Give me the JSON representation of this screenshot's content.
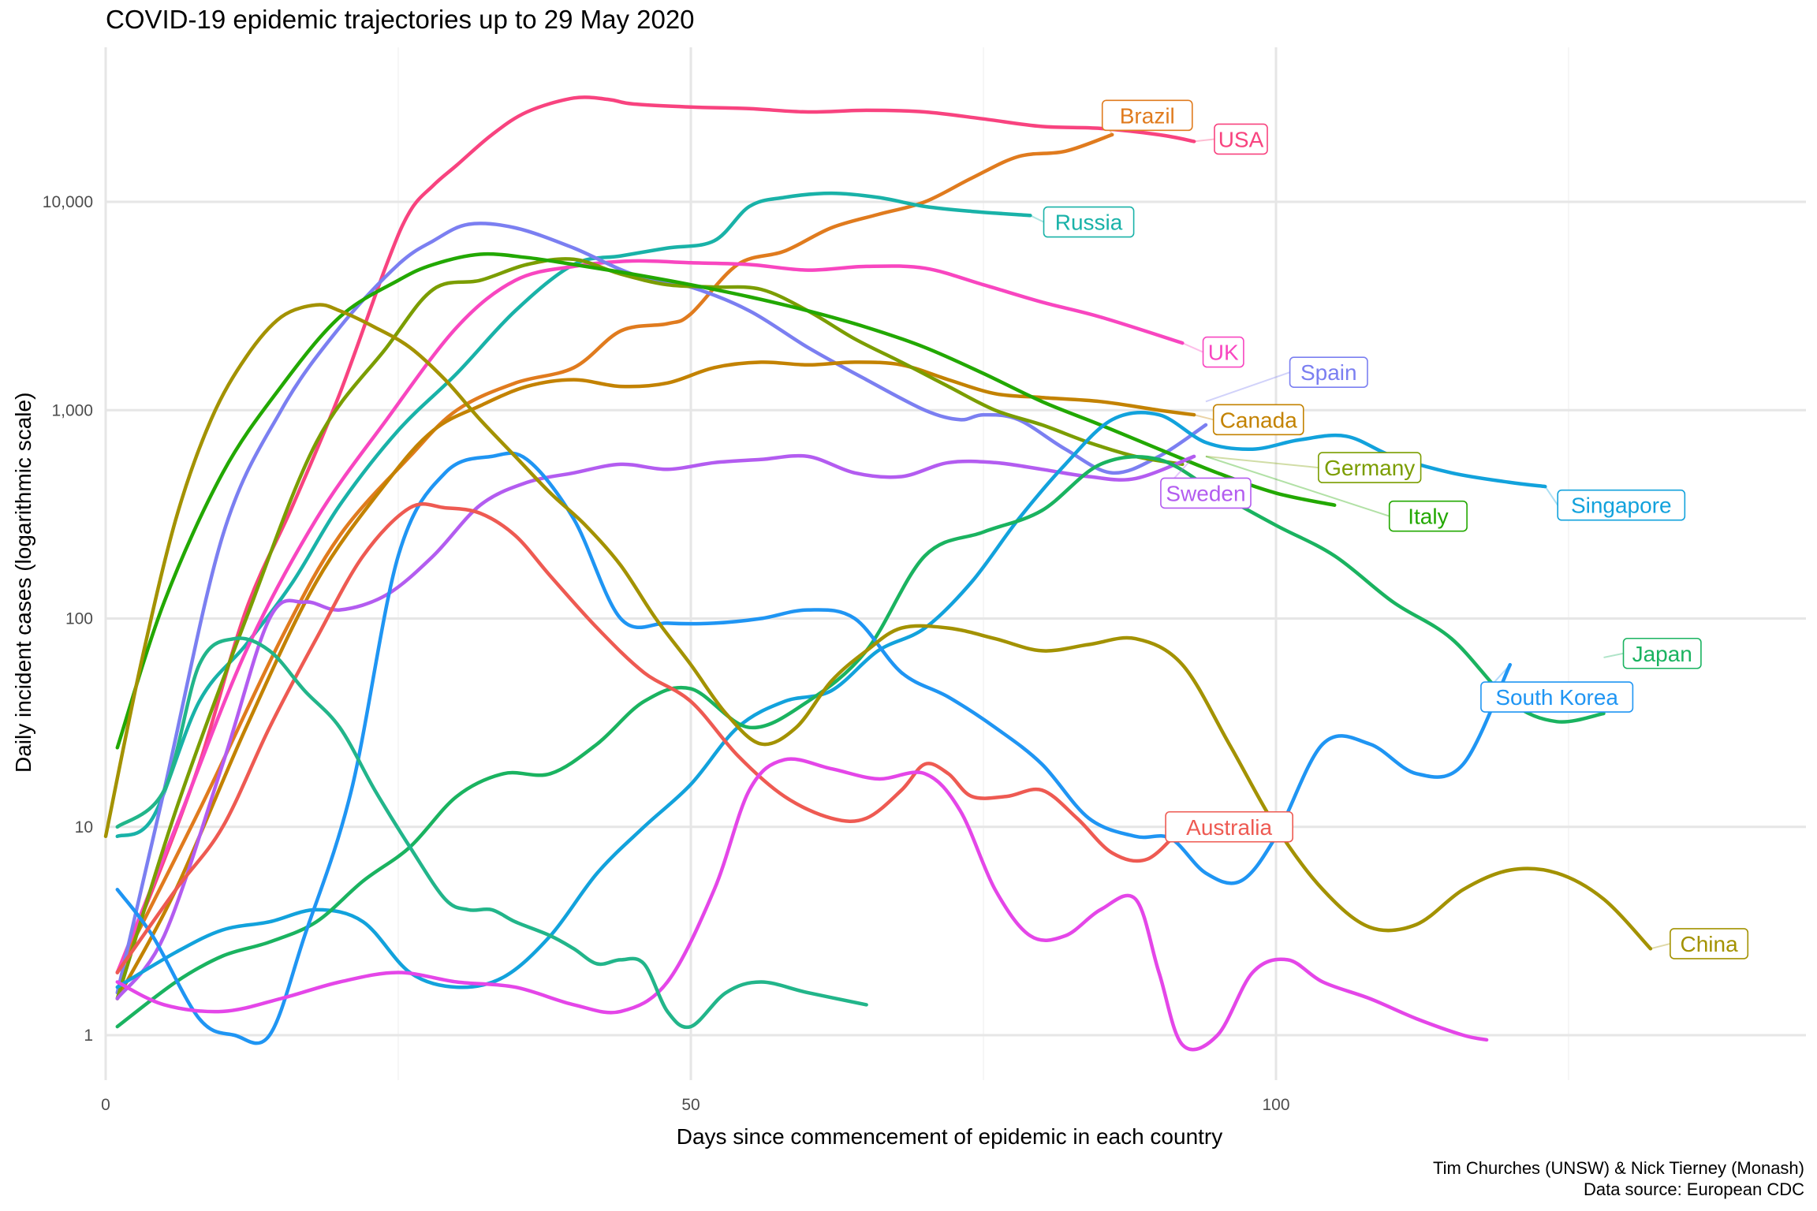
{
  "title": "COVID-19 epidemic trajectories up to 29 May 2020",
  "caption": {
    "line1": "Tim Churches (UNSW) & Nick Tierney (Monash)",
    "line2": "Data source: European CDC"
  },
  "chart_data": {
    "type": "line",
    "title": "COVID-19 epidemic trajectories up to 29 May 2020",
    "xlabel": "Days since commencement of epidemic in each country",
    "ylabel": "Daily incident cases (logarithmic scale)",
    "xlim": [
      0,
      144
    ],
    "ylim": [
      0.5,
      50000
    ],
    "y_scale": "log10",
    "x_ticks": [
      0,
      50,
      100
    ],
    "x_tick_labels": [
      "0",
      "50",
      "100"
    ],
    "y_ticks": [
      1,
      10,
      100,
      1000,
      10000
    ],
    "y_tick_labels": [
      "1",
      "10",
      "100",
      "1,000",
      "10,000"
    ],
    "grid": true,
    "legend": "direct-labels",
    "series": [
      {
        "name": "USA",
        "color": "#F8437F",
        "x": [
          1,
          4,
          8,
          12,
          16,
          20,
          24,
          26,
          28,
          30,
          33,
          36,
          40,
          43,
          45,
          50,
          55,
          60,
          65,
          70,
          75,
          80,
          85,
          90,
          93
        ],
        "y": [
          2,
          5,
          20,
          110,
          350,
          1200,
          5000,
          9000,
          12000,
          15000,
          21000,
          27000,
          31500,
          31000,
          29500,
          28500,
          28000,
          27000,
          27500,
          27000,
          25000,
          23000,
          22500,
          21000,
          19500
        ]
      },
      {
        "name": "Brazil",
        "color": "#E07B1E",
        "x": [
          1,
          8,
          15,
          20,
          26,
          30,
          35,
          40,
          44,
          48,
          50,
          54,
          58,
          62,
          66,
          70,
          74,
          78,
          82,
          86
        ],
        "y": [
          2,
          12,
          80,
          250,
          600,
          1000,
          1350,
          1600,
          2400,
          2600,
          2900,
          5000,
          5800,
          7500,
          8700,
          10000,
          13000,
          16500,
          17500,
          21000
        ]
      },
      {
        "name": "Russia",
        "color": "#19B2A8",
        "x": [
          1,
          4,
          8,
          12,
          16,
          20,
          25,
          30,
          35,
          40,
          44,
          48,
          52,
          55,
          58,
          62,
          66,
          70,
          74,
          79
        ],
        "y": [
          9,
          11,
          40,
          75,
          150,
          350,
          800,
          1500,
          3000,
          5000,
          5500,
          6000,
          6500,
          9500,
          10500,
          11000,
          10500,
          9500,
          9000,
          8600
        ]
      },
      {
        "name": "UK",
        "color": "#F846C0",
        "x": [
          1,
          6,
          12,
          18,
          24,
          30,
          35,
          40,
          45,
          50,
          55,
          60,
          65,
          70,
          75,
          80,
          85,
          92
        ],
        "y": [
          2,
          10,
          70,
          300,
          900,
          2500,
          4200,
          4900,
          5200,
          5100,
          5000,
          4700,
          4900,
          4800,
          4000,
          3300,
          2800,
          2100
        ]
      },
      {
        "name": "Spain",
        "color": "#7B7FF1",
        "x": [
          1,
          5,
          10,
          15,
          20,
          25,
          28,
          31,
          35,
          40,
          45,
          50,
          55,
          60,
          65,
          70,
          73,
          75,
          78,
          82,
          86,
          90,
          94
        ],
        "y": [
          1.6,
          15,
          250,
          1000,
          2500,
          5000,
          6500,
          7800,
          7500,
          6000,
          4500,
          3900,
          3000,
          2000,
          1400,
          1000,
          900,
          950,
          900,
          650,
          500,
          600,
          850
        ]
      },
      {
        "name": "Canada",
        "color": "#C38200",
        "x": [
          1,
          6,
          12,
          18,
          24,
          28,
          32,
          36,
          40,
          44,
          48,
          52,
          56,
          60,
          64,
          68,
          72,
          76,
          80,
          85,
          90,
          93
        ],
        "y": [
          1.5,
          5,
          30,
          150,
          450,
          800,
          1050,
          1300,
          1400,
          1300,
          1350,
          1600,
          1700,
          1650,
          1700,
          1650,
          1400,
          1200,
          1150,
          1100,
          1000,
          950
        ]
      },
      {
        "name": "Germany",
        "color": "#7B9D00",
        "x": [
          1,
          6,
          12,
          18,
          24,
          28,
          32,
          36,
          40,
          44,
          48,
          52,
          56,
          60,
          64,
          68,
          72,
          76,
          80,
          84,
          88,
          92
        ],
        "y": [
          1.5,
          12,
          100,
          700,
          2000,
          3800,
          4200,
          5000,
          5300,
          4500,
          4000,
          3900,
          3800,
          3000,
          2200,
          1700,
          1300,
          1000,
          850,
          700,
          600,
          550
        ]
      },
      {
        "name": "Italy",
        "color": "#22A800",
        "x": [
          1,
          5,
          10,
          15,
          20,
          25,
          28,
          32,
          36,
          40,
          45,
          50,
          55,
          60,
          65,
          70,
          75,
          80,
          85,
          90,
          95,
          100,
          105
        ],
        "y": [
          24,
          120,
          500,
          1300,
          2800,
          4200,
          5000,
          5600,
          5400,
          5000,
          4500,
          4000,
          3500,
          3000,
          2500,
          2000,
          1500,
          1100,
          850,
          650,
          500,
          400,
          350
        ]
      },
      {
        "name": "Sweden",
        "color": "#B35CF0",
        "x": [
          1,
          5,
          10,
          14,
          17,
          20,
          24,
          28,
          32,
          36,
          40,
          44,
          48,
          52,
          56,
          60,
          64,
          68,
          72,
          76,
          80,
          84,
          88,
          93
        ],
        "y": [
          1.5,
          3,
          20,
          100,
          120,
          110,
          130,
          200,
          350,
          450,
          500,
          550,
          520,
          560,
          580,
          600,
          500,
          480,
          560,
          560,
          520,
          480,
          470,
          600
        ]
      },
      {
        "name": "Singapore",
        "color": "#12A2DC",
        "x": [
          1,
          6,
          10,
          14,
          18,
          22,
          26,
          30,
          34,
          38,
          42,
          46,
          50,
          54,
          58,
          62,
          66,
          70,
          74,
          78,
          82,
          86,
          90,
          94,
          98,
          102,
          106,
          110,
          115,
          120,
          123
        ],
        "y": [
          1.7,
          2.5,
          3.2,
          3.5,
          4,
          3.5,
          2,
          1.7,
          1.9,
          3,
          6,
          10,
          16,
          30,
          40,
          45,
          70,
          90,
          150,
          300,
          550,
          900,
          950,
          700,
          650,
          720,
          750,
          600,
          500,
          450,
          430
        ]
      },
      {
        "name": "Japan",
        "color": "#1AB360",
        "x": [
          1,
          6,
          10,
          14,
          18,
          22,
          26,
          30,
          34,
          38,
          42,
          46,
          50,
          55,
          60,
          65,
          70,
          75,
          80,
          85,
          90,
          95,
          100,
          105,
          110,
          115,
          120,
          124,
          128
        ],
        "y": [
          1.1,
          1.8,
          2.4,
          2.8,
          3.5,
          5.5,
          8,
          14,
          18,
          18,
          25,
          40,
          46,
          30,
          40,
          70,
          200,
          260,
          330,
          550,
          580,
          400,
          280,
          200,
          120,
          80,
          40,
          32,
          35
        ]
      },
      {
        "name": "South Korea",
        "color": "#1F95F3",
        "x": [
          1,
          4,
          8,
          11,
          14,
          17,
          21,
          25,
          29,
          33,
          36,
          40,
          44,
          48,
          52,
          56,
          60,
          64,
          68,
          72,
          76,
          80,
          84,
          88,
          91,
          94,
          97,
          100,
          104,
          108,
          112,
          116,
          120
        ],
        "y": [
          5,
          3,
          1.2,
          1,
          1,
          3,
          15,
          200,
          500,
          600,
          580,
          300,
          100,
          95,
          95,
          100,
          110,
          100,
          55,
          42,
          30,
          20,
          11,
          9,
          8.8,
          6,
          5.5,
          9,
          25,
          25,
          18,
          20,
          60
        ]
      },
      {
        "name": "China",
        "color": "#A39200",
        "x": [
          0,
          3,
          6,
          9,
          12,
          15,
          18,
          20,
          23,
          26,
          29,
          32,
          35,
          38,
          41,
          44,
          47,
          50,
          53,
          56,
          59,
          62,
          65,
          68,
          72,
          76,
          80,
          84,
          88,
          92,
          96,
          100,
          104,
          108,
          112,
          116,
          120,
          124,
          128,
          132
        ],
        "y": [
          9,
          60,
          300,
          900,
          1800,
          2800,
          3200,
          3000,
          2500,
          2000,
          1400,
          900,
          600,
          400,
          280,
          180,
          100,
          60,
          35,
          25,
          30,
          50,
          70,
          90,
          90,
          80,
          70,
          75,
          80,
          60,
          25,
          10,
          5,
          3.3,
          3.4,
          5,
          6.2,
          6,
          4.5,
          2.6
        ]
      },
      {
        "name": "Australia",
        "color": "#EE5A52",
        "x": [
          1,
          6,
          10,
          14,
          18,
          22,
          26,
          29,
          32,
          35,
          38,
          42,
          46,
          50,
          54,
          58,
          62,
          65,
          68,
          70,
          72,
          74,
          77,
          80,
          83,
          86,
          89,
          92
        ],
        "y": [
          2,
          5,
          10,
          30,
          80,
          200,
          340,
          340,
          320,
          250,
          160,
          90,
          55,
          40,
          22,
          14,
          11,
          11,
          15,
          20,
          18,
          14,
          14,
          15,
          11,
          7.5,
          7,
          10
        ]
      },
      {
        "name": "Unlabeled magenta",
        "color": "#E446E8",
        "x": [
          1,
          5,
          10,
          15,
          20,
          25,
          30,
          35,
          40,
          44,
          48,
          52,
          55,
          58,
          62,
          66,
          70,
          73,
          76,
          79,
          82,
          85,
          88,
          90,
          92,
          95,
          98,
          101,
          104,
          108,
          112,
          116,
          118
        ],
        "y": [
          1.8,
          1.4,
          1.3,
          1.5,
          1.8,
          2,
          1.8,
          1.7,
          1.4,
          1.3,
          1.8,
          5,
          15,
          21,
          19,
          17,
          18,
          12,
          5,
          3,
          3,
          4,
          4.5,
          2,
          0.9,
          1,
          2,
          2.3,
          1.8,
          1.5,
          1.2,
          1,
          0.95
        ]
      },
      {
        "name": "Unlabeled teal",
        "color": "#22B58A",
        "x": [
          1,
          5,
          8,
          11,
          14,
          17,
          20,
          23,
          26,
          29,
          31,
          33,
          35,
          38,
          40,
          42,
          44,
          46,
          48,
          50,
          53,
          56,
          60,
          65
        ],
        "y": [
          10,
          15,
          60,
          80,
          70,
          45,
          30,
          15,
          8,
          4.5,
          4,
          4,
          3.5,
          3,
          2.6,
          2.2,
          2.3,
          2.2,
          1.3,
          1.1,
          1.6,
          1.8,
          1.6,
          1.4
        ]
      }
    ],
    "labels": [
      {
        "text": "Brazil",
        "color": "#E07B1E",
        "x": 89,
        "y": 26000,
        "anchor_x": 86,
        "anchor_y": 21000
      },
      {
        "text": "USA",
        "color": "#F8437F",
        "x": 97,
        "y": 20000,
        "anchor_x": 93,
        "anchor_y": 19500
      },
      {
        "text": "Russia",
        "color": "#19B2A8",
        "x": 84,
        "y": 8000,
        "anchor_x": 79,
        "anchor_y": 8600
      },
      {
        "text": "UK",
        "color": "#F846C0",
        "x": 95.5,
        "y": 1900,
        "anchor_x": 92,
        "anchor_y": 2100
      },
      {
        "text": "Spain",
        "color": "#7B7FF1",
        "x": 104.5,
        "y": 1520,
        "anchor_x": 94,
        "anchor_y": 1100
      },
      {
        "text": "Canada",
        "color": "#C38200",
        "x": 98.5,
        "y": 900,
        "anchor_x": 93,
        "anchor_y": 950
      },
      {
        "text": "Germany",
        "color": "#7B9D00",
        "x": 108,
        "y": 530,
        "anchor_x": 94,
        "anchor_y": 600
      },
      {
        "text": "Sweden",
        "color": "#B35CF0",
        "x": 94,
        "y": 400,
        "anchor_x": 93,
        "anchor_y": 600
      },
      {
        "text": "Italy",
        "color": "#22A800",
        "x": 113,
        "y": 310,
        "anchor_x": 94,
        "anchor_y": 600
      },
      {
        "text": "Singapore",
        "color": "#12A2DC",
        "x": 129.5,
        "y": 350,
        "anchor_x": 123,
        "anchor_y": 430
      },
      {
        "text": "Japan",
        "color": "#1AB360",
        "x": 133,
        "y": 68,
        "anchor_x": 128,
        "anchor_y": 65
      },
      {
        "text": "South Korea",
        "color": "#1F95F3",
        "x": 124,
        "y": 42,
        "anchor_x": 120,
        "anchor_y": 60
      },
      {
        "text": "Australia",
        "color": "#EE5A52",
        "x": 96,
        "y": 10,
        "anchor_x": 92,
        "anchor_y": 10
      },
      {
        "text": "China",
        "color": "#A39200",
        "x": 137,
        "y": 2.75,
        "anchor_x": 132,
        "anchor_y": 2.6
      }
    ]
  }
}
